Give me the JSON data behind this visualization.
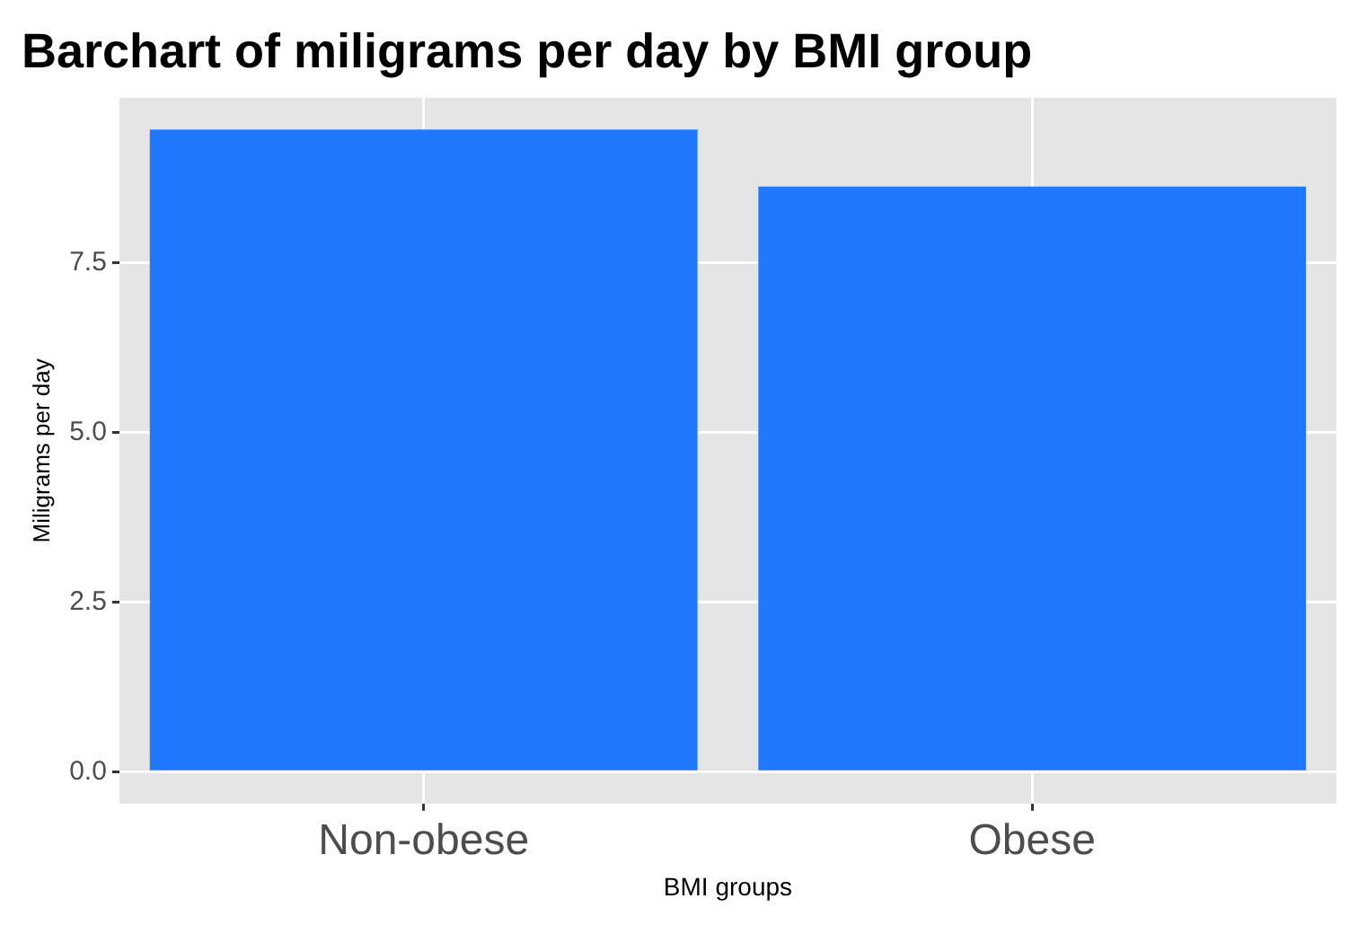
{
  "chart_data": {
    "type": "bar",
    "title": "Barchart of miligrams per day by BMI group",
    "xlabel": "BMI groups",
    "ylabel": "Miligrams per day",
    "categories": [
      "Non-obese",
      "Obese"
    ],
    "values": [
      9.46,
      8.62
    ],
    "color": "#1f78ff",
    "ylim": [
      -0.47,
      9.93
    ],
    "yticks": [
      {
        "value": 0,
        "label": "0.0"
      },
      {
        "value": 2.5,
        "label": "2.5"
      },
      {
        "value": 5,
        "label": "5.0"
      },
      {
        "value": 7.5,
        "label": "7.5"
      }
    ],
    "grid": true,
    "legend": false
  }
}
